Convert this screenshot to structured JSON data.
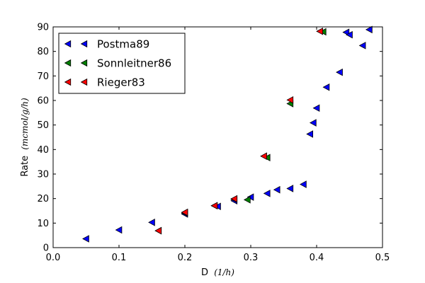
{
  "chart_data": {
    "type": "scatter",
    "title": "",
    "xlabel": "D",
    "xlabel_unit": "(1/h)",
    "ylabel": "Rate",
    "ylabel_unit": "(mcmol/g/h)",
    "xlim": [
      0.0,
      0.5
    ],
    "ylim": [
      0,
      90
    ],
    "xticks": [
      "0.0",
      "0.1",
      "0.2",
      "0.3",
      "0.4",
      "0.5"
    ],
    "yticks": [
      "0",
      "10",
      "20",
      "30",
      "40",
      "50",
      "60",
      "70",
      "80",
      "90"
    ],
    "grid": false,
    "legend_position": "top-left",
    "marker": "triangle-left",
    "series": [
      {
        "name": "Postma89",
        "color": "#0000ff",
        "x": [
          0.05,
          0.1,
          0.15,
          0.2,
          0.25,
          0.275,
          0.3,
          0.325,
          0.34,
          0.36,
          0.38,
          0.39,
          0.395,
          0.4,
          0.415,
          0.435,
          0.445,
          0.45,
          0.47,
          0.48
        ],
        "y": [
          3.6,
          7.2,
          10.3,
          13.7,
          16.8,
          19.1,
          20.6,
          22.1,
          23.6,
          24.1,
          25.8,
          46.3,
          50.9,
          56.9,
          65.4,
          71.5,
          87.8,
          86.8,
          82.4,
          88.9
        ]
      },
      {
        "name": "Sonnleitner86",
        "color": "#008000",
        "x": [
          0.16,
          0.2,
          0.245,
          0.275,
          0.295,
          0.325,
          0.36,
          0.41
        ],
        "y": [
          6.9,
          14.1,
          17.1,
          19.7,
          19.5,
          36.7,
          58.7,
          88.0
        ]
      },
      {
        "name": "Rieger83",
        "color": "#ff0000",
        "x": [
          0.16,
          0.2,
          0.245,
          0.275,
          0.32,
          0.36,
          0.405
        ],
        "y": [
          6.9,
          14.4,
          17.1,
          19.9,
          37.3,
          60.2,
          88.2
        ]
      }
    ]
  }
}
